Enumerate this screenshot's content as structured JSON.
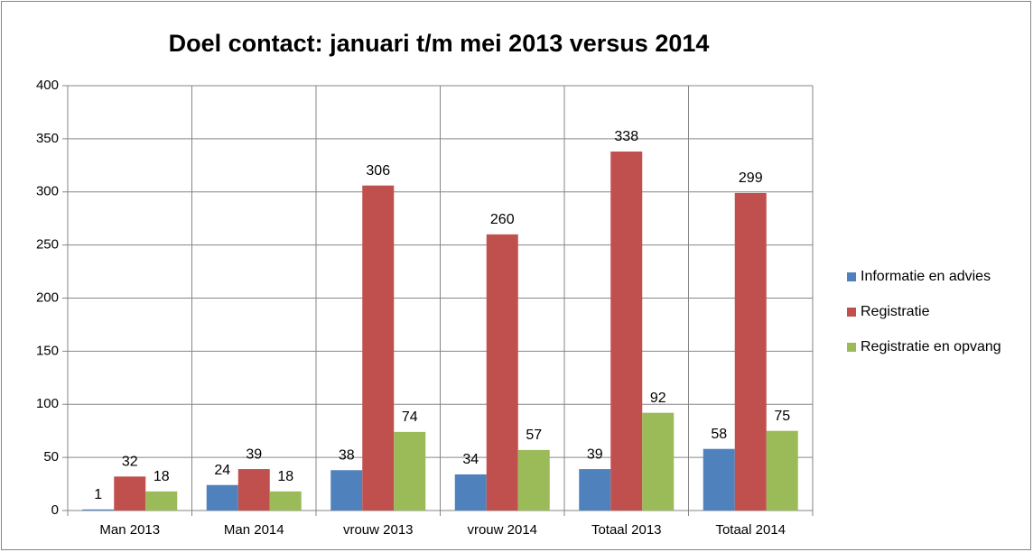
{
  "chart_data": {
    "type": "bar",
    "title": "Doel contact: januari t/m mei 2013 versus 2014",
    "categories": [
      "Man 2013",
      "Man 2014",
      "vrouw 2013",
      "vrouw 2014",
      "Totaal 2013",
      "Totaal 2014"
    ],
    "series": [
      {
        "name": "Informatie en advies",
        "color": "#4f81bd",
        "values": [
          1,
          24,
          38,
          34,
          39,
          58
        ]
      },
      {
        "name": "Registratie",
        "color": "#c0504d",
        "values": [
          32,
          39,
          306,
          260,
          338,
          299
        ]
      },
      {
        "name": "Registratie en opvang",
        "color": "#9bbb59",
        "values": [
          18,
          18,
          74,
          57,
          92,
          75
        ]
      }
    ],
    "ylim": [
      0,
      400
    ],
    "yticks": [
      0,
      50,
      100,
      150,
      200,
      250,
      300,
      350,
      400
    ],
    "grid": true,
    "legend": "right"
  }
}
